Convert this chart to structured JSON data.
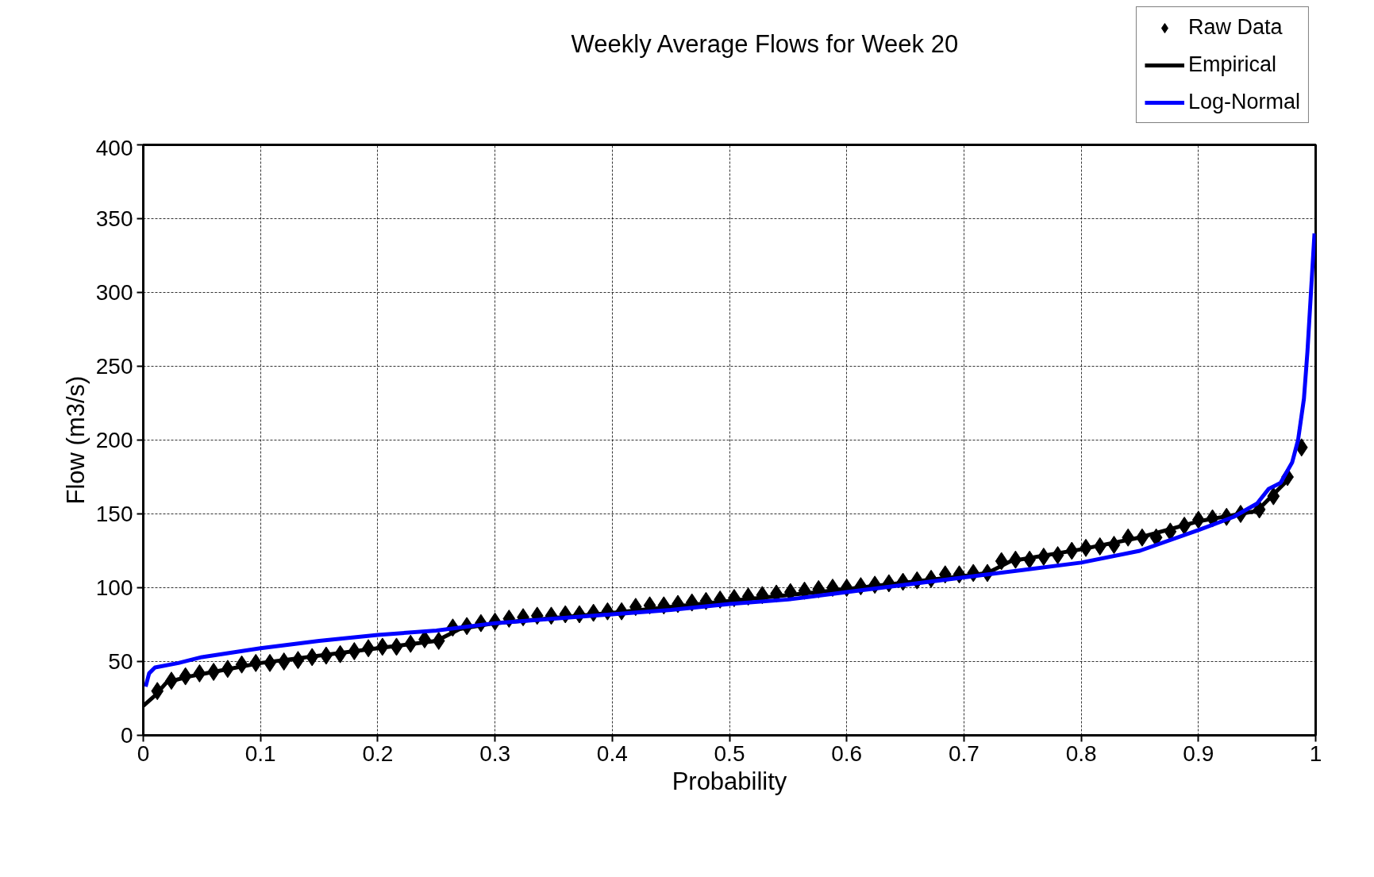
{
  "chart_data": {
    "type": "line",
    "title": "Weekly Average Flows for Week 20",
    "xlabel": "Probability",
    "ylabel": "Flow (m3/s)",
    "xlim": [
      0,
      1
    ],
    "xticks": [
      0,
      0.1,
      0.2,
      0.3,
      0.4,
      0.5,
      0.6,
      0.7,
      0.8,
      0.9,
      1
    ],
    "ylim": [
      0,
      400
    ],
    "yticks": [
      0,
      50,
      100,
      150,
      200,
      250,
      300,
      350,
      400
    ],
    "grid": true,
    "legend": "top right",
    "series": [
      {
        "name": "Raw Data",
        "type": "scatter",
        "marker": "diamond",
        "color": "#000000",
        "x": [
          0.012,
          0.024,
          0.036,
          0.048,
          0.06,
          0.072,
          0.084,
          0.096,
          0.108,
          0.12,
          0.132,
          0.144,
          0.156,
          0.168,
          0.18,
          0.192,
          0.204,
          0.216,
          0.228,
          0.24,
          0.252,
          0.264,
          0.276,
          0.288,
          0.3,
          0.312,
          0.324,
          0.336,
          0.348,
          0.36,
          0.372,
          0.384,
          0.396,
          0.408,
          0.42,
          0.432,
          0.444,
          0.456,
          0.468,
          0.48,
          0.492,
          0.504,
          0.516,
          0.528,
          0.54,
          0.552,
          0.564,
          0.576,
          0.588,
          0.6,
          0.612,
          0.624,
          0.636,
          0.648,
          0.66,
          0.672,
          0.684,
          0.696,
          0.708,
          0.72,
          0.732,
          0.744,
          0.756,
          0.768,
          0.78,
          0.792,
          0.804,
          0.816,
          0.828,
          0.84,
          0.852,
          0.864,
          0.876,
          0.888,
          0.9,
          0.912,
          0.924,
          0.936,
          0.952,
          0.964,
          0.976,
          0.988
        ],
        "values": [
          30,
          37,
          40,
          42,
          43,
          45,
          48,
          49,
          49,
          50,
          51,
          53,
          54,
          55,
          57,
          59,
          60,
          60,
          62,
          65,
          64,
          73,
          74,
          76,
          77,
          79,
          80,
          81,
          81,
          82,
          82,
          83,
          84,
          84,
          87,
          88,
          88,
          89,
          90,
          91,
          92,
          93,
          94,
          95,
          96,
          97,
          98,
          99,
          100,
          100,
          101,
          102,
          103,
          104,
          105,
          106,
          109,
          109,
          110,
          110,
          118,
          119,
          119,
          121,
          122,
          125,
          127,
          128,
          129,
          134,
          134,
          134,
          138,
          142,
          146,
          147,
          148,
          150,
          153,
          162,
          175,
          195
        ]
      },
      {
        "name": "Empirical",
        "color": "#000000",
        "x": [
          0,
          0.01,
          0.02,
          0.04,
          0.1,
          0.2,
          0.25,
          0.27,
          0.3,
          0.4,
          0.5,
          0.6,
          0.7,
          0.72,
          0.74,
          0.8,
          0.85,
          0.9,
          0.95,
          0.97,
          0.98
        ],
        "values": [
          20,
          27,
          36,
          40,
          49,
          59,
          64,
          72,
          76,
          83,
          91,
          99,
          108,
          110,
          118,
          126,
          134,
          145,
          152,
          168,
          176
        ]
      },
      {
        "name": "Log-Normal",
        "color": "#0000ff",
        "x": [
          0.002,
          0.005,
          0.01,
          0.03,
          0.05,
          0.1,
          0.15,
          0.2,
          0.25,
          0.3,
          0.35,
          0.4,
          0.45,
          0.5,
          0.55,
          0.6,
          0.65,
          0.7,
          0.75,
          0.8,
          0.85,
          0.9,
          0.93,
          0.95,
          0.96,
          0.97,
          0.98,
          0.985,
          0.99,
          0.993,
          0.996,
          0.999
        ],
        "values": [
          33,
          42,
          46,
          49,
          53,
          59,
          64,
          68,
          71,
          76,
          79,
          82,
          85,
          89,
          92,
          97,
          102,
          107,
          112,
          117,
          125,
          139,
          148,
          157,
          167,
          171,
          185,
          200,
          228,
          260,
          300,
          340
        ]
      }
    ]
  }
}
